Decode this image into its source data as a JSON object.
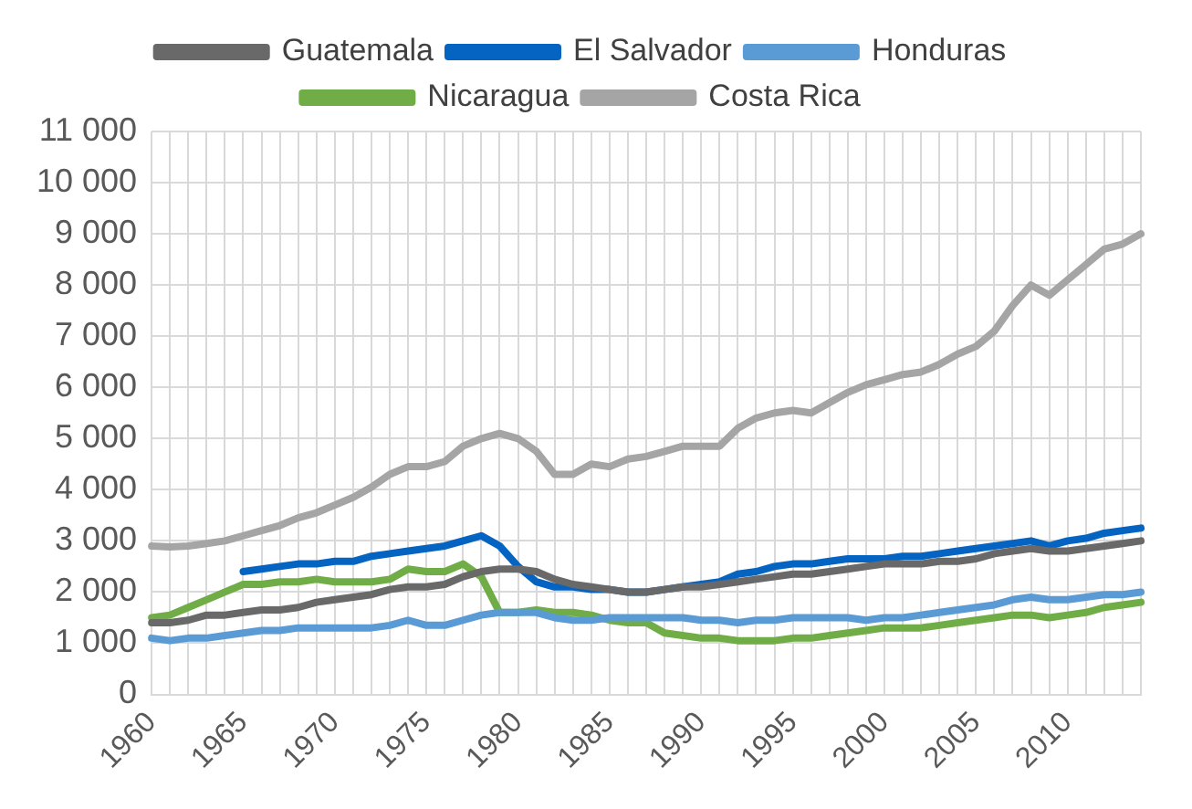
{
  "chart_data": {
    "type": "line",
    "categories": [
      "1960",
      null,
      null,
      null,
      null,
      "1965",
      null,
      null,
      null,
      null,
      "1970",
      null,
      null,
      null,
      null,
      "1975",
      null,
      null,
      null,
      null,
      "1980",
      null,
      null,
      null,
      null,
      "1985",
      null,
      null,
      null,
      null,
      "1990",
      null,
      null,
      null,
      null,
      "1995",
      null,
      null,
      null,
      null,
      "2000",
      null,
      null,
      null,
      null,
      "2005",
      null,
      null,
      null,
      null,
      "2010",
      null,
      null,
      null,
      null
    ],
    "series": [
      {
        "name": "Guatemala",
        "color": "#696969",
        "values": [
          1400,
          1400,
          1450,
          1550,
          1550,
          1600,
          1650,
          1650,
          1700,
          1800,
          1850,
          1900,
          1950,
          2050,
          2100,
          2100,
          2150,
          2300,
          2400,
          2450,
          2450,
          2400,
          2250,
          2150,
          2100,
          2050,
          2000,
          2000,
          2050,
          2100,
          2100,
          2150,
          2200,
          2250,
          2300,
          2350,
          2350,
          2400,
          2450,
          2500,
          2550,
          2550,
          2550,
          2600,
          2600,
          2650,
          2750,
          2800,
          2850,
          2800,
          2800,
          2850,
          2900,
          2950,
          3000
        ]
      },
      {
        "name": "El Salvador",
        "color": "#0563c1",
        "values": [
          null,
          null,
          null,
          null,
          null,
          2400,
          2450,
          2500,
          2550,
          2550,
          2600,
          2600,
          2700,
          2750,
          2800,
          2850,
          2900,
          3000,
          3100,
          2900,
          2500,
          2200,
          2100,
          2100,
          2050,
          2050,
          2000,
          2000,
          2050,
          2100,
          2150,
          2200,
          2350,
          2400,
          2500,
          2550,
          2550,
          2600,
          2650,
          2650,
          2650,
          2700,
          2700,
          2750,
          2800,
          2850,
          2900,
          2950,
          3000,
          2900,
          3000,
          3050,
          3150,
          3200,
          3250
        ]
      },
      {
        "name": "Honduras",
        "color": "#5b9bd5",
        "values": [
          1100,
          1050,
          1100,
          1100,
          1150,
          1200,
          1250,
          1250,
          1300,
          1300,
          1300,
          1300,
          1300,
          1350,
          1450,
          1350,
          1350,
          1450,
          1550,
          1600,
          1600,
          1600,
          1500,
          1450,
          1450,
          1500,
          1500,
          1500,
          1500,
          1500,
          1450,
          1450,
          1400,
          1450,
          1450,
          1500,
          1500,
          1500,
          1500,
          1450,
          1500,
          1500,
          1550,
          1600,
          1650,
          1700,
          1750,
          1850,
          1900,
          1850,
          1850,
          1900,
          1950,
          1950,
          2000
        ]
      },
      {
        "name": "Nicaragua",
        "color": "#70ad47",
        "values": [
          1500,
          1550,
          1700,
          1850,
          2000,
          2150,
          2150,
          2200,
          2200,
          2250,
          2200,
          2200,
          2200,
          2250,
          2450,
          2400,
          2400,
          2550,
          2300,
          1600,
          1600,
          1650,
          1600,
          1600,
          1550,
          1450,
          1400,
          1400,
          1200,
          1150,
          1100,
          1100,
          1050,
          1050,
          1050,
          1100,
          1100,
          1150,
          1200,
          1250,
          1300,
          1300,
          1300,
          1350,
          1400,
          1450,
          1500,
          1550,
          1550,
          1500,
          1550,
          1600,
          1700,
          1750,
          1800
        ]
      },
      {
        "name": "Costa Rica",
        "color": "#a5a5a5",
        "values": [
          2900,
          2880,
          2900,
          2950,
          3000,
          3100,
          3200,
          3300,
          3450,
          3550,
          3700,
          3850,
          4050,
          4300,
          4450,
          4450,
          4550,
          4850,
          5000,
          5100,
          5000,
          4750,
          4300,
          4300,
          4500,
          4450,
          4600,
          4650,
          4750,
          4850,
          4850,
          4850,
          5200,
          5400,
          5500,
          5550,
          5500,
          5700,
          5900,
          6050,
          6150,
          6250,
          6300,
          6450,
          6650,
          6800,
          7100,
          7600,
          8000,
          7800,
          8100,
          8400,
          8700,
          8800,
          9000
        ]
      }
    ],
    "ylim": [
      0,
      11000
    ],
    "yticks": [
      0,
      {
        "value": 1000,
        "label": "1 000"
      },
      {
        "value": 2000,
        "label": "2 000"
      },
      {
        "value": 3000,
        "label": "3 000"
      },
      {
        "value": 4000,
        "label": "4 000"
      },
      {
        "value": 5000,
        "label": "5 000"
      },
      {
        "value": 6000,
        "label": "6 000"
      },
      {
        "value": 7000,
        "label": "7 000"
      },
      {
        "value": 8000,
        "label": "8 000"
      },
      {
        "value": 9000,
        "label": "9 000"
      },
      {
        "value": 10000,
        "label": "10 000"
      },
      {
        "value": 11000,
        "label": "11 000"
      }
    ],
    "grid": true,
    "legend": "top",
    "marker": "none",
    "line_style": "solid"
  }
}
